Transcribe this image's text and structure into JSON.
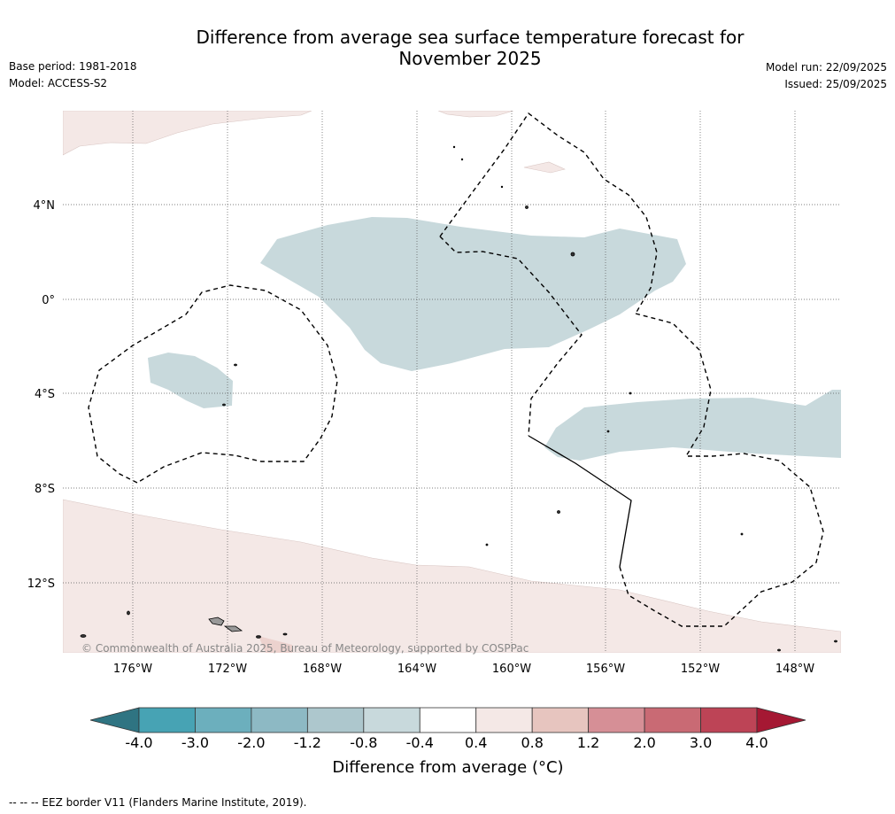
{
  "title_line1": "Difference from average sea surface temperature forecast for",
  "title_line2": "November 2025",
  "base_period": "Base period: 1981-2018",
  "model": "Model: ACCESS-S2",
  "model_run": "Model run: 22/09/2025",
  "issued": "Issued: 25/09/2025",
  "copyright": "© Commonwealth of Australia 2025, Bureau of Meteorology, supported by COSPPac",
  "lat_labels": [
    "4°N",
    "0°",
    "4°S",
    "8°S",
    "12°S"
  ],
  "lon_labels": [
    "176°W",
    "172°W",
    "168°W",
    "164°W",
    "160°W",
    "156°W",
    "152°W",
    "148°W"
  ],
  "colorbar": {
    "title": "Difference from average (°C)",
    "ticks": [
      "-4.0",
      "-3.0",
      "-2.0",
      "-1.2",
      "-0.8",
      "-0.4",
      "0.4",
      "0.8",
      "1.2",
      "2.0",
      "3.0",
      "4.0"
    ],
    "colors": [
      "#47a3b4",
      "#6cafbd",
      "#8db9c4",
      "#adc7cd",
      "#c8d9dc",
      "#ffffff",
      "#f4e8e6",
      "#e7c5bf",
      "#d68f96",
      "#c96a74",
      "#bd4456"
    ],
    "under_color": "#2f7482",
    "over_color": "#a51833"
  },
  "footnote": "-- -- -- EEZ border V11 (Flanders Marine Institute, 2019)."
}
